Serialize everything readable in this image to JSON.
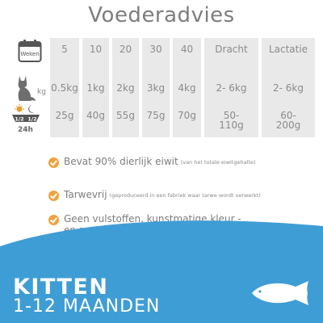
{
  "title": "Voederadvies",
  "row_labels": {
    "weeks": "Weken",
    "kg": "kg",
    "halves": [
      "1/2",
      "1/2"
    ],
    "day": "24h"
  },
  "columns": [
    {
      "head": "5",
      "kg": "0.5kg",
      "portion": "25g"
    },
    {
      "head": "10",
      "kg": "1kg",
      "portion": "40g"
    },
    {
      "head": "20",
      "kg": "2kg",
      "portion": "55g"
    },
    {
      "head": "30",
      "kg": "3kg",
      "portion": "75g"
    },
    {
      "head": "40",
      "kg": "4kg",
      "portion": "70g"
    },
    {
      "head": "Dracht",
      "kg": "2- 6kg",
      "portion_lines": [
        "50-",
        "110g"
      ]
    },
    {
      "head": "Lactatie",
      "kg": "2- 6kg",
      "portion_lines": [
        "60-",
        "200g"
      ]
    }
  ],
  "features": [
    {
      "text": "Bevat 90% dierlijk eiwit",
      "note": "(van het totale eiwitgehalte)"
    },
    {
      "text": "Tarwevrij",
      "note": "(geproduceerd in een fabriek waar tarwe wordt verwerkt)"
    },
    {
      "lines": [
        "Geen vulstoffen, kunstmatige kleur -",
        "en smaakstoffen of GGO's"
      ]
    }
  ],
  "banner": {
    "line1": "KITTEN",
    "line2": "1-12 MAANDEN"
  },
  "colors": {
    "accent": "#f0a23b",
    "banner_blue": "#3f9dd6",
    "cell_gray": "#e9e9e9"
  },
  "icons": [
    "calendar-icon",
    "cat-icon",
    "sun-moon-icon",
    "check-icon",
    "fish-icon"
  ]
}
